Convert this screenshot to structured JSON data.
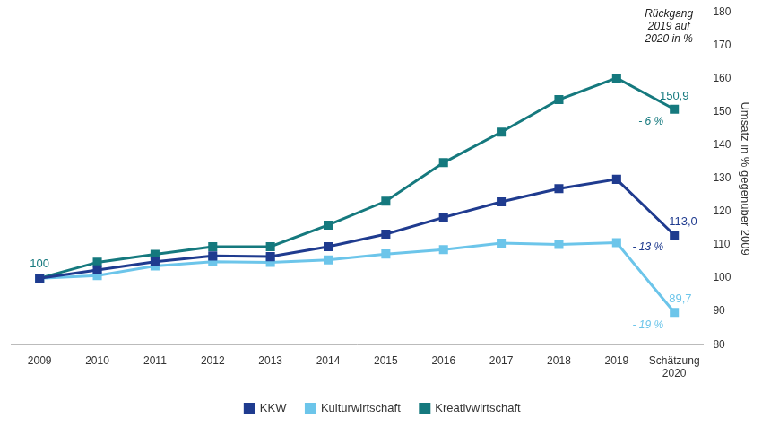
{
  "chart_data": {
    "type": "line",
    "categories": [
      "2009",
      "2010",
      "2011",
      "2012",
      "2013",
      "2014",
      "2015",
      "2016",
      "2017",
      "2018",
      "2019",
      "Schätzung 2020"
    ],
    "series": [
      {
        "name": "KKW",
        "color": "#1f3b8f",
        "marker": "square",
        "values": [
          100,
          102.5,
          105,
          106.7,
          106.5,
          109.5,
          113.3,
          118.3,
          123,
          127,
          129.8,
          113.0
        ],
        "value_labels": [
          null,
          null,
          null,
          null,
          null,
          null,
          null,
          null,
          null,
          null,
          null,
          "113,0"
        ]
      },
      {
        "name": "Kulturwirtschaft",
        "color": "#6cc5ea",
        "marker": "square",
        "values": [
          100,
          100.8,
          103.7,
          105,
          104.8,
          105.5,
          107.3,
          108.6,
          110.6,
          110.2,
          110.7,
          89.7
        ],
        "value_labels": [
          null,
          null,
          null,
          null,
          null,
          null,
          null,
          null,
          null,
          null,
          null,
          "89,7"
        ]
      },
      {
        "name": "Kreativwirtschaft",
        "color": "#15797e",
        "marker": "square",
        "values": [
          100,
          104.8,
          107.2,
          109.5,
          109.5,
          116,
          123.2,
          134.8,
          144,
          153.8,
          160.3,
          150.9
        ],
        "value_labels": [
          "100",
          null,
          null,
          null,
          null,
          null,
          null,
          null,
          null,
          null,
          null,
          "150,9"
        ]
      }
    ],
    "y_label": "Umsatz in % gegenüber 2009",
    "ylim": [
      80,
      180
    ],
    "yticks": [
      80,
      90,
      100,
      110,
      120,
      130,
      140,
      150,
      160,
      170,
      180
    ],
    "grid": false,
    "legend": "bottom",
    "annotations": [
      {
        "text": "Rückgang 2019 auf 2020 in %"
      },
      {
        "text": "- 6 %",
        "series": "Kreativwirtschaft"
      },
      {
        "text": "- 13 %",
        "series": "KKW"
      },
      {
        "text": "- 19 %",
        "series": "Kulturwirtschaft"
      }
    ]
  }
}
